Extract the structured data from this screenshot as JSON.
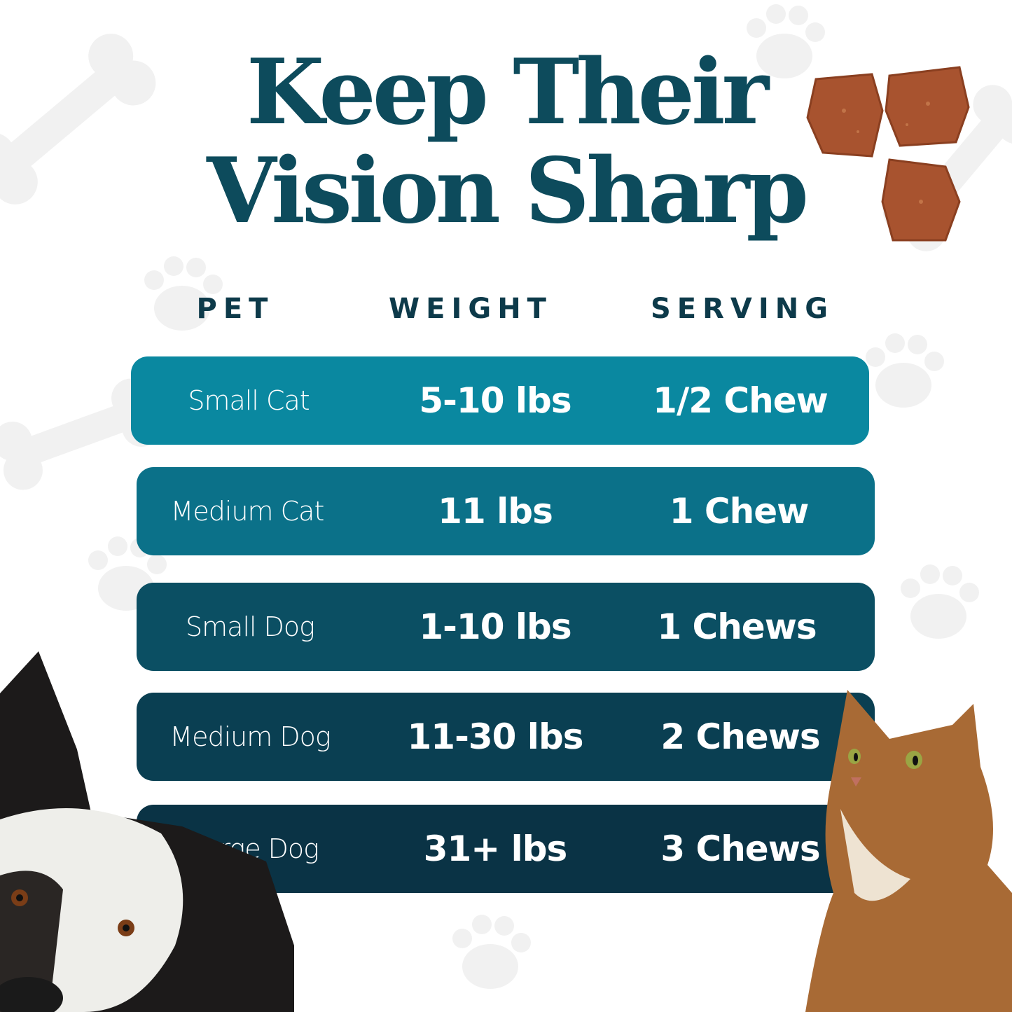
{
  "title": {
    "line1": "Keep Their",
    "line2": "Vision Sharp"
  },
  "headers": {
    "pet": "PET",
    "weight": "WEIGHT",
    "serving": "SERVING"
  },
  "rows": [
    {
      "pet": "Small Cat",
      "weight": "5-10 lbs",
      "serving": "1/2 Chew",
      "color": "#0a88a0"
    },
    {
      "pet": "Medium Cat",
      "weight": "11 lbs",
      "serving": "1 Chew",
      "color": "#0b7189"
    },
    {
      "pet": "Small Dog",
      "weight": "1-10  lbs",
      "serving": "1 Chews",
      "color": "#0b4f63"
    },
    {
      "pet": "Medium Dog",
      "weight": "11-30  lbs",
      "serving": "2 Chews",
      "color": "#0a3f52"
    },
    {
      "pet": "Large Dog",
      "weight": "31+  lbs",
      "serving": "3 Chews",
      "color": "#0a3345"
    }
  ],
  "colors": {
    "title": "#0d4b5c",
    "header": "#0d3a4a",
    "background": "#ffffff",
    "pattern": "#f0f0f0"
  }
}
